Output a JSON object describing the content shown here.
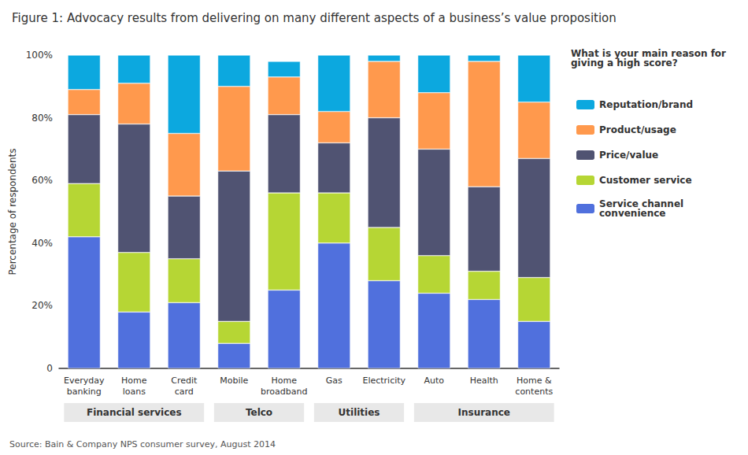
{
  "chart_data": {
    "type": "bar",
    "title": "Figure 1: Advocacy results from delivering on many different aspects of a business’s value proposition",
    "ylabel": "Percentage of respondents",
    "categories": [
      "Everyday\nbanking",
      "Home\nloans",
      "Credit\ncard",
      "Mobile",
      "Home\nbroadband",
      "Gas",
      "Electricity",
      "Auto",
      "Health",
      "Home &\ncontents"
    ],
    "groups": [
      {
        "name": "Financial services",
        "categories": [
          "Everyday\nbanking",
          "Home\nloans",
          "Credit\ncard"
        ]
      },
      {
        "name": "Telco",
        "categories": [
          "Mobile",
          "Home\nbroadband"
        ]
      },
      {
        "name": "Utilities",
        "categories": [
          "Gas",
          "Electricity"
        ]
      },
      {
        "name": "Insurance",
        "categories": [
          "Auto",
          "Health",
          "Home &\ncontents"
        ]
      }
    ],
    "series": [
      {
        "name": "Service channel\nconvenience",
        "values": [
          42,
          18,
          21,
          8,
          25,
          40,
          28,
          24,
          22,
          15
        ]
      },
      {
        "name": "Customer service",
        "values": [
          17,
          19,
          14,
          7,
          31,
          16,
          17,
          12,
          9,
          14
        ]
      },
      {
        "name": "Price/value",
        "values": [
          22,
          41,
          20,
          48,
          25,
          16,
          35,
          34,
          27,
          38
        ]
      },
      {
        "name": "Product/usage",
        "values": [
          8,
          13,
          20,
          27,
          12,
          10,
          18,
          18,
          40,
          18
        ]
      },
      {
        "name": "Reputation/brand",
        "values": [
          11,
          9,
          25,
          10,
          5,
          18,
          2,
          12,
          2,
          15
        ]
      }
    ],
    "stacked": true,
    "ylim": [
      0,
      100
    ],
    "yticks": [
      0,
      {
        "value": 20,
        "label": "20%"
      },
      {
        "value": 40,
        "label": "40%"
      },
      {
        "value": 60,
        "label": "60%"
      },
      {
        "value": 80,
        "label": "80%"
      },
      {
        "value": 100,
        "label": "100%"
      }
    ],
    "grid": false,
    "legend": "right",
    "annotations": [
      "What is your main reason for giving a high score?",
      "Source: Bain & Company NPS consumer survey, August 2014"
    ]
  }
}
